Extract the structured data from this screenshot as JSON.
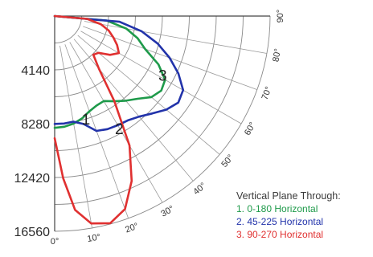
{
  "chart_data": {
    "type": "polar",
    "title": "",
    "radial_ticks": [
      "4140",
      "8280",
      "12420",
      "16560"
    ],
    "radial_values": [
      4140,
      8280,
      12420,
      16560
    ],
    "rmax": 16560,
    "angle_ticks": [
      "0°",
      "10°",
      "20°",
      "30°",
      "40°",
      "50°",
      "60°",
      "70°",
      "80°",
      "90°"
    ],
    "angle_values": [
      0,
      10,
      20,
      30,
      40,
      50,
      60,
      70,
      80,
      90
    ],
    "legend": {
      "title": "Vertical Plane Through:",
      "entries": [
        "1. 0-180 Horizontal",
        "2. 45-225 Horizontal",
        "3. 90-270 Horizontal"
      ]
    },
    "series": [
      {
        "id": "1",
        "color": "#1e9a4a",
        "points": [
          [
            0,
            8600
          ],
          [
            5,
            8550
          ],
          [
            10,
            8400
          ],
          [
            15,
            8150
          ],
          [
            20,
            7800
          ],
          [
            25,
            7600
          ],
          [
            30,
            7550
          ],
          [
            35,
            8000
          ],
          [
            40,
            8500
          ],
          [
            45,
            9000
          ],
          [
            50,
            9700
          ],
          [
            55,
            10000
          ],
          [
            60,
            9800
          ],
          [
            65,
            8800
          ],
          [
            70,
            7400
          ],
          [
            75,
            6600
          ],
          [
            80,
            5600
          ],
          [
            85,
            4000
          ],
          [
            90,
            0
          ]
        ]
      },
      {
        "id": "2",
        "color": "#2233aa",
        "points": [
          [
            0,
            8300
          ],
          [
            5,
            8300
          ],
          [
            10,
            8250
          ],
          [
            15,
            8600
          ],
          [
            20,
            9400
          ],
          [
            25,
            9600
          ],
          [
            30,
            9700
          ],
          [
            35,
            9800
          ],
          [
            40,
            10100
          ],
          [
            45,
            10600
          ],
          [
            50,
            11200
          ],
          [
            55,
            11600
          ],
          [
            60,
            11400
          ],
          [
            65,
            10500
          ],
          [
            70,
            9400
          ],
          [
            75,
            8200
          ],
          [
            80,
            6800
          ],
          [
            85,
            5000
          ],
          [
            90,
            0
          ]
        ]
      },
      {
        "id": "3",
        "color": "#e03030",
        "points": [
          [
            0,
            9400
          ],
          [
            3,
            12500
          ],
          [
            6,
            15000
          ],
          [
            10,
            16200
          ],
          [
            15,
            16500
          ],
          [
            20,
            15800
          ],
          [
            25,
            14000
          ],
          [
            30,
            11500
          ],
          [
            35,
            8000
          ],
          [
            40,
            5300
          ],
          [
            45,
            4200
          ],
          [
            50,
            4400
          ],
          [
            55,
            5200
          ],
          [
            60,
            5700
          ],
          [
            65,
            5300
          ],
          [
            70,
            4800
          ],
          [
            75,
            4300
          ],
          [
            80,
            3600
          ],
          [
            85,
            2500
          ],
          [
            90,
            0
          ]
        ]
      }
    ],
    "curve_labels": [
      {
        "text": "1",
        "angle": 14,
        "r": 8600
      },
      {
        "text": "2",
        "angle": 27,
        "r": 10200
      },
      {
        "text": "3",
        "angle": 58,
        "r": 9400
      }
    ]
  }
}
